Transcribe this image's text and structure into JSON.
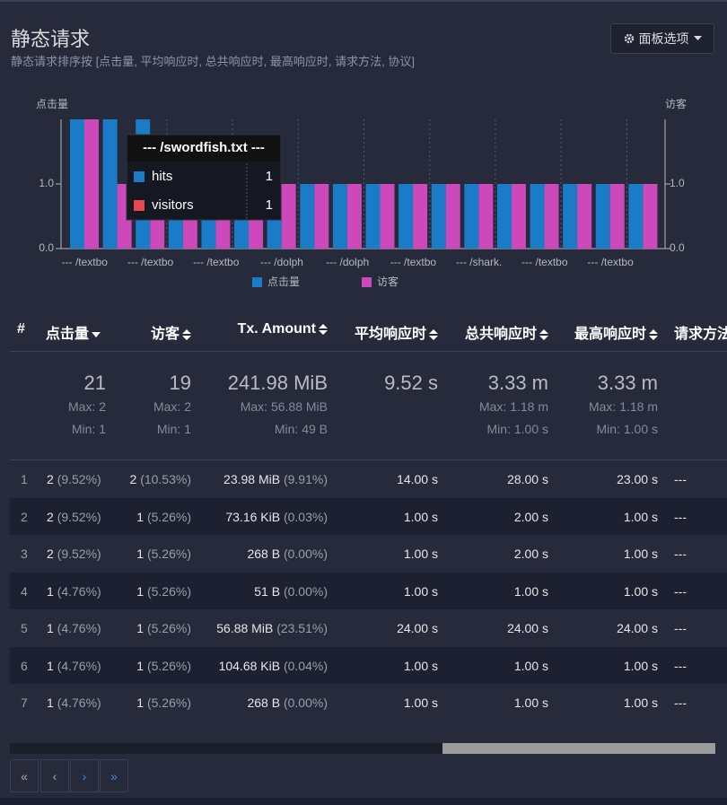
{
  "header": {
    "title": "静态请求",
    "subtitle": "静态请求排序按 [点击量, 平均响应时, 总共响应时, 最高响应时, 请求方法, 协议]",
    "options_button": "面板选项"
  },
  "chart_data": {
    "type": "bar",
    "y_label": "点击量",
    "y2_label": "访客",
    "categories": [
      "--- /textbo",
      null,
      "--- /textbo",
      null,
      "--- /textbo",
      null,
      "--- /dolph",
      null,
      "--- /dolph",
      null,
      "--- /textbo",
      null,
      "--- /shark.",
      null,
      "--- /textbo",
      null,
      "--- /textbo",
      null
    ],
    "series": [
      {
        "name": "点击量",
        "color": "#1a7bc9",
        "values": [
          2,
          2,
          2,
          1,
          1,
          1,
          1,
          1,
          1,
          1,
          1,
          1,
          1,
          1,
          1,
          1,
          1,
          1
        ]
      },
      {
        "name": "访客",
        "color": "#cd49bb",
        "axis": "y2",
        "values": [
          2,
          1,
          1,
          1,
          1,
          1,
          1,
          1,
          1,
          1,
          1,
          1,
          1,
          1,
          1,
          1,
          1,
          1
        ]
      }
    ],
    "ylim": [
      0,
      2
    ],
    "yticks": [
      {
        "value": 0,
        "label": "0.0"
      },
      {
        "value": 1,
        "label": "1.0"
      }
    ],
    "y2lim": [
      0,
      2
    ],
    "y2ticks": [
      {
        "value": 0,
        "label": "0.0"
      },
      {
        "value": 1,
        "label": "1.0"
      }
    ],
    "tooltip": {
      "title": "--- /swordfish.txt ---",
      "rows": [
        {
          "name": "hits",
          "color": "#1a7bc9",
          "value": 1
        },
        {
          "name": "visitors",
          "color": "#e8474f",
          "value": 1
        }
      ]
    }
  },
  "table": {
    "headers": [
      "#",
      "点击量",
      "访客",
      "Tx. Amount",
      "平均响应时",
      "总共响应时",
      "最高响应时",
      "请求方法"
    ],
    "summary": {
      "hits": {
        "total": "21",
        "max": "Max: 2",
        "min": "Min: 1"
      },
      "visitors": {
        "total": "19",
        "max": "Max: 2",
        "min": "Min: 1"
      },
      "tx": {
        "total": "241.98 MiB",
        "max": "Max: 56.88 MiB",
        "min": "Min: 49 B"
      },
      "avg": {
        "total": "9.52 s"
      },
      "cum": {
        "total": "3.33 m",
        "max": "Max: 1.18 m",
        "min": "Min: 1.00 s"
      },
      "max": {
        "total": "3.33 m",
        "max": "Max: 1.18 m",
        "min": "Min: 1.00 s"
      }
    },
    "rows": [
      [
        "1",
        "2",
        "(9.52%)",
        "2",
        "(10.53%)",
        "23.98 MiB",
        "(9.91%)",
        "14.00 s",
        "28.00 s",
        "23.00 s",
        "---"
      ],
      [
        "2",
        "2",
        "(9.52%)",
        "1",
        "(5.26%)",
        "73.16 KiB",
        "(0.03%)",
        "1.00 s",
        "2.00 s",
        "1.00 s",
        "---"
      ],
      [
        "3",
        "2",
        "(9.52%)",
        "1",
        "(5.26%)",
        "268 B",
        "(0.00%)",
        "1.00 s",
        "2.00 s",
        "1.00 s",
        "---"
      ],
      [
        "4",
        "1",
        "(4.76%)",
        "1",
        "(5.26%)",
        "51 B",
        "(0.00%)",
        "1.00 s",
        "1.00 s",
        "1.00 s",
        "---"
      ],
      [
        "5",
        "1",
        "(4.76%)",
        "1",
        "(5.26%)",
        "56.88 MiB",
        "(23.51%)",
        "24.00 s",
        "24.00 s",
        "24.00 s",
        "---"
      ],
      [
        "6",
        "1",
        "(4.76%)",
        "1",
        "(5.26%)",
        "104.68 KiB",
        "(0.04%)",
        "1.00 s",
        "1.00 s",
        "1.00 s",
        "---"
      ],
      [
        "7",
        "1",
        "(4.76%)",
        "1",
        "(5.26%)",
        "268 B",
        "(0.00%)",
        "1.00 s",
        "1.00 s",
        "1.00 s",
        "---"
      ]
    ]
  }
}
